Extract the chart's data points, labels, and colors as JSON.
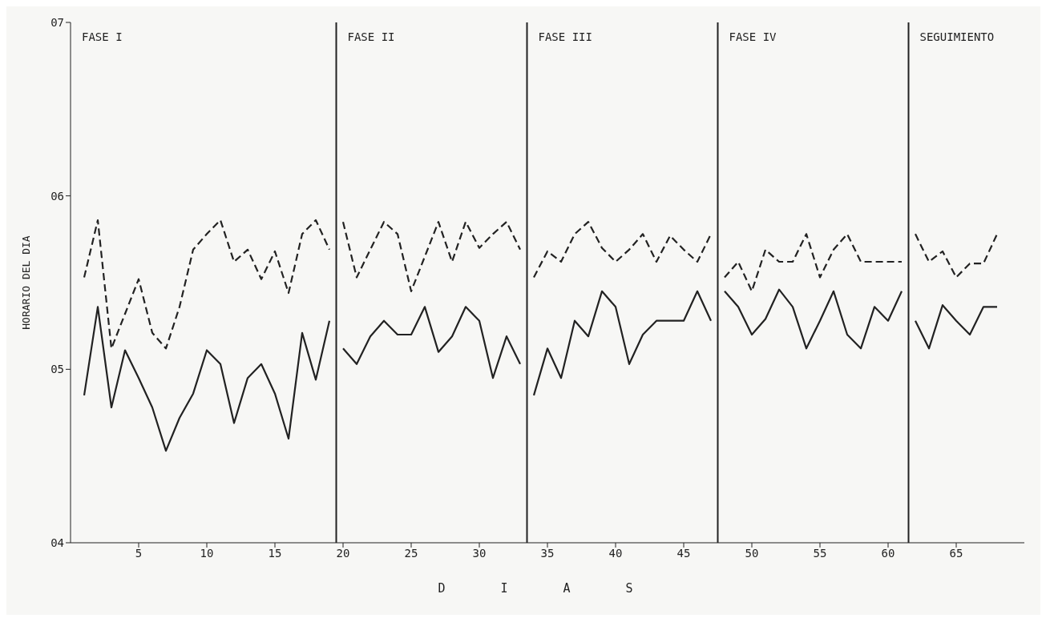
{
  "chart_data": {
    "type": "line",
    "xlabel": "D I A S",
    "ylabel": "HORARIO DEL DIA",
    "xlim": [
      0,
      70
    ],
    "xticks": [
      5,
      10,
      15,
      20,
      25,
      30,
      35,
      40,
      45,
      50,
      55,
      60,
      65
    ],
    "ylim": [
      4,
      7
    ],
    "yticks": [
      {
        "value": 4,
        "label": "04"
      },
      {
        "value": 5,
        "label": "05"
      },
      {
        "value": 6,
        "label": "06"
      },
      {
        "value": 7,
        "label": "07"
      }
    ],
    "grid": false,
    "marker": "none",
    "series": [
      {
        "color": "#222222",
        "line_style": "dashed",
        "x": [
          1,
          2,
          3,
          4,
          5,
          6,
          7,
          8,
          9,
          10,
          11,
          12,
          13,
          14,
          15,
          16,
          17,
          18,
          19
        ],
        "values": [
          5.53,
          5.86,
          5.12,
          5.32,
          5.52,
          5.21,
          5.12,
          5.36,
          5.69,
          5.78,
          5.86,
          5.62,
          5.69,
          5.52,
          5.68,
          5.44,
          5.78,
          5.86,
          5.69
        ]
      },
      {
        "color": "#222222",
        "line_style": "solid",
        "x": [
          1,
          2,
          3,
          4,
          5,
          6,
          7,
          8,
          9,
          10,
          11,
          12,
          13,
          14,
          15,
          16,
          17,
          18,
          19
        ],
        "values": [
          4.85,
          5.36,
          4.78,
          5.11,
          4.95,
          4.78,
          4.53,
          4.72,
          4.86,
          5.11,
          5.03,
          4.69,
          4.95,
          5.03,
          4.86,
          4.6,
          5.21,
          4.94,
          5.28
        ]
      },
      {
        "color": "#222222",
        "line_style": "dashed",
        "x": [
          20,
          21,
          22,
          23,
          24,
          25,
          26,
          27,
          28,
          29,
          30,
          31,
          32,
          33
        ],
        "values": [
          5.85,
          5.53,
          5.69,
          5.85,
          5.78,
          5.45,
          5.65,
          5.85,
          5.62,
          5.85,
          5.7,
          5.78,
          5.85,
          5.69
        ]
      },
      {
        "color": "#222222",
        "line_style": "solid",
        "x": [
          20,
          21,
          22,
          23,
          24,
          25,
          26,
          27,
          28,
          29,
          30,
          31,
          32,
          33
        ],
        "values": [
          5.12,
          5.03,
          5.19,
          5.28,
          5.2,
          5.2,
          5.36,
          5.1,
          5.19,
          5.36,
          5.28,
          4.95,
          5.19,
          5.03
        ]
      },
      {
        "color": "#222222",
        "line_style": "dashed",
        "x": [
          34,
          35,
          36,
          37,
          38,
          39,
          40,
          41,
          42,
          43,
          44,
          45,
          46,
          47
        ],
        "values": [
          5.53,
          5.68,
          5.62,
          5.78,
          5.85,
          5.7,
          5.62,
          5.69,
          5.78,
          5.62,
          5.77,
          5.69,
          5.62,
          5.78
        ]
      },
      {
        "color": "#222222",
        "line_style": "solid",
        "x": [
          34,
          35,
          36,
          37,
          38,
          39,
          40,
          41,
          42,
          43,
          44,
          45,
          46,
          47
        ],
        "values": [
          4.85,
          5.12,
          4.95,
          5.28,
          5.19,
          5.45,
          5.36,
          5.03,
          5.2,
          5.28,
          5.28,
          5.28,
          5.45,
          5.28
        ]
      },
      {
        "color": "#222222",
        "line_style": "dashed",
        "x": [
          48,
          49,
          50,
          51,
          52,
          53,
          54,
          55,
          56,
          57,
          58,
          59,
          60,
          61
        ],
        "values": [
          5.53,
          5.62,
          5.45,
          5.69,
          5.62,
          5.62,
          5.78,
          5.53,
          5.69,
          5.78,
          5.62,
          5.62,
          5.62,
          5.62
        ]
      },
      {
        "color": "#222222",
        "line_style": "solid",
        "x": [
          48,
          49,
          50,
          51,
          52,
          53,
          54,
          55,
          56,
          57,
          58,
          59,
          60,
          61
        ],
        "values": [
          5.45,
          5.36,
          5.2,
          5.29,
          5.46,
          5.36,
          5.12,
          5.28,
          5.45,
          5.2,
          5.12,
          5.36,
          5.28,
          5.45
        ]
      },
      {
        "color": "#222222",
        "line_style": "dashed",
        "x": [
          62,
          63,
          64,
          65,
          66,
          67,
          68
        ],
        "values": [
          5.78,
          5.62,
          5.68,
          5.53,
          5.61,
          5.61,
          5.78
        ]
      },
      {
        "color": "#222222",
        "line_style": "solid",
        "x": [
          62,
          63,
          64,
          65,
          66,
          67,
          68
        ],
        "values": [
          5.28,
          5.12,
          5.37,
          5.28,
          5.2,
          5.36,
          5.36
        ]
      }
    ],
    "ref_lines": [
      {
        "axis": "x",
        "value": 19.5,
        "color": "#222222"
      },
      {
        "axis": "x",
        "value": 33.5,
        "color": "#222222"
      },
      {
        "axis": "x",
        "value": 47.5,
        "color": "#222222"
      },
      {
        "axis": "x",
        "value": 61.5,
        "color": "#222222"
      }
    ],
    "annotations": [
      "FASE I",
      "FASE II",
      "FASE III",
      "FASE IV",
      "SEGUIMIENTO"
    ]
  }
}
